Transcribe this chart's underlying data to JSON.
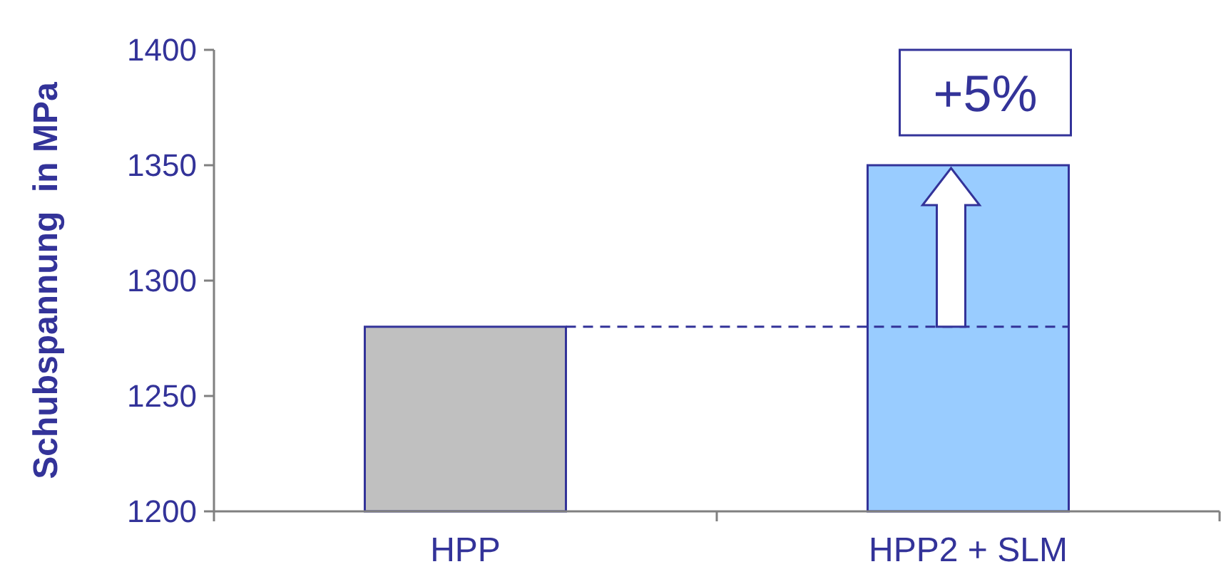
{
  "chart_data": {
    "type": "bar",
    "ylabel": "Schubspannung  in MPa",
    "categories": [
      "HPP",
      "HPP2 + SLM"
    ],
    "values": [
      1280,
      1350
    ],
    "colors": [
      "#c0c0c0",
      "#99ccff"
    ],
    "ylim": [
      1200,
      1400
    ],
    "yticks": [
      1200,
      1250,
      1300,
      1350,
      1400
    ],
    "grid": false,
    "ref_lines": [
      {
        "axis": "y",
        "value": 1280,
        "color": "#333399",
        "line_style": "dashed"
      }
    ],
    "annotations": [
      "+5%"
    ]
  }
}
